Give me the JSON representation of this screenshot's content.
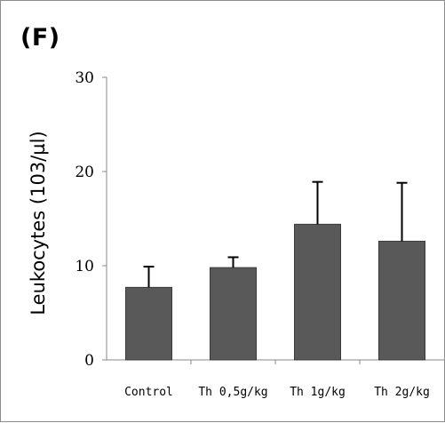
{
  "figure": {
    "panel_label": "(F)"
  },
  "chart_data": {
    "type": "bar",
    "title": "",
    "xlabel": "",
    "ylabel": "Leukocytes (103/µl)",
    "ylim": [
      0,
      30
    ],
    "yticks": [
      0,
      10,
      20,
      30
    ],
    "categories": [
      "Control",
      "Th 0,5g/kg",
      "Th 1g/kg",
      "Th 2g/kg"
    ],
    "values": [
      7.7,
      9.8,
      14.4,
      12.6
    ],
    "error_upper": [
      2.2,
      1.1,
      4.5,
      6.2
    ],
    "bar_color": "#595959",
    "grid": false,
    "legend": "none"
  }
}
